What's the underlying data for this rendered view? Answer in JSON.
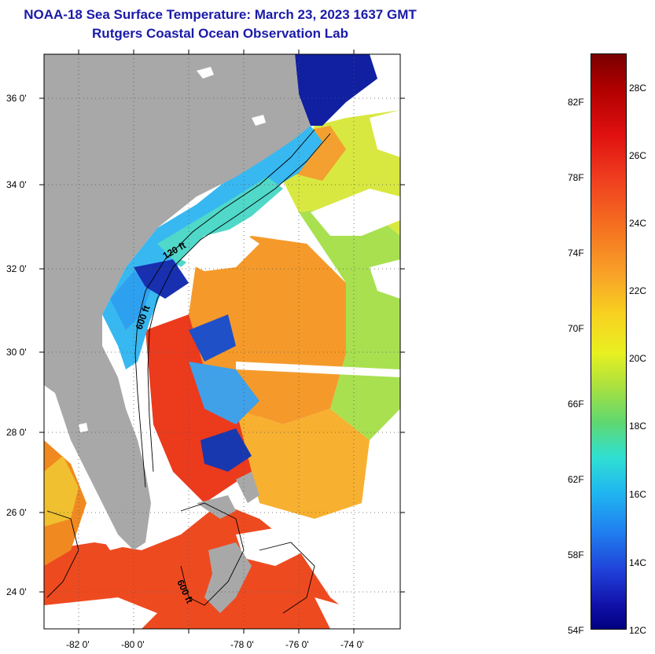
{
  "header": {
    "title": "NOAA-18 Sea Surface Temperature:  March 23, 2023 1637 GMT",
    "subtitle": "Rutgers Coastal Ocean Observation Lab"
  },
  "map": {
    "lat_labels": [
      "36 0'",
      "34 0'",
      "32 0'",
      "30 0'",
      "28 0'",
      "26 0'",
      "24 0'"
    ],
    "lon_labels": [
      "-82 0'",
      "-80 0'",
      "-78 0'",
      "-76 0'",
      "-74 0'"
    ],
    "contour_labels": [
      "120 ft",
      "600 ft",
      "600 ft"
    ],
    "colors": {
      "land": "#a8a8a8",
      "cloud": "#ffffff"
    }
  },
  "colorbar": {
    "fahrenheit": [
      "82F",
      "78F",
      "74F",
      "70F",
      "66F",
      "62F",
      "58F",
      "54F"
    ],
    "celsius": [
      "28C",
      "26C",
      "24C",
      "22C",
      "20C",
      "18C",
      "16C",
      "14C",
      "12C"
    ]
  }
}
